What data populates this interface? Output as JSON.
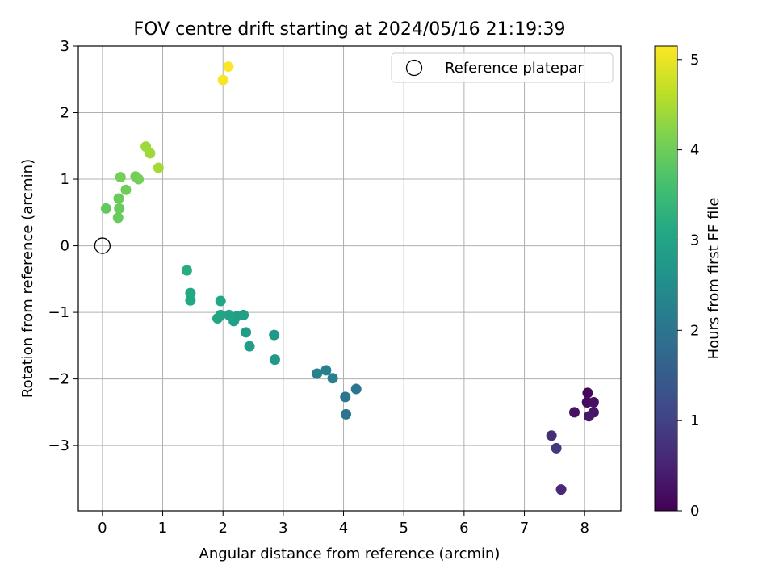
{
  "chart_data": {
    "type": "scatter",
    "title": "FOV centre drift starting at 2024/05/16 21:19:39",
    "xlabel": "Angular distance from reference (arcmin)",
    "ylabel": "Rotation from reference (arcmin)",
    "xlim": [
      -0.4,
      8.6
    ],
    "ylim": [
      -3.98,
      3.0
    ],
    "xticks": [
      0,
      1,
      2,
      3,
      4,
      5,
      6,
      7,
      8
    ],
    "yticks": [
      3,
      2,
      1,
      0,
      -1,
      -2,
      -3
    ],
    "xtick_labels": [
      "0",
      "1",
      "2",
      "3",
      "4",
      "5",
      "6",
      "7",
      "8"
    ],
    "ytick_labels": [
      "3",
      "2",
      "1",
      "0",
      "−1",
      "−2",
      "−3"
    ],
    "grid": true,
    "legend": {
      "position": "top-right",
      "entries": [
        {
          "label": "Reference platepar",
          "marker": "open-circle"
        }
      ]
    },
    "reference_point": {
      "x": 0,
      "y": 0
    },
    "colorbar": {
      "label": "Hours from first FF file",
      "colormap": "viridis",
      "range": [
        0,
        5.15
      ],
      "ticks": [
        0,
        1,
        2,
        3,
        4,
        5
      ],
      "tick_labels": [
        "0",
        "1",
        "2",
        "3",
        "4",
        "5"
      ]
    },
    "points": [
      {
        "x": 8.05,
        "y": -2.21,
        "c": 0.1
      },
      {
        "x": 8.04,
        "y": -2.35,
        "c": 0.15
      },
      {
        "x": 8.15,
        "y": -2.35,
        "c": 0.2
      },
      {
        "x": 7.83,
        "y": -2.5,
        "c": 0.25
      },
      {
        "x": 8.15,
        "y": -2.5,
        "c": 0.3
      },
      {
        "x": 8.07,
        "y": -2.56,
        "c": 0.35
      },
      {
        "x": 7.45,
        "y": -2.85,
        "c": 0.7
      },
      {
        "x": 7.53,
        "y": -3.04,
        "c": 0.8
      },
      {
        "x": 7.61,
        "y": -3.66,
        "c": 0.6
      },
      {
        "x": 4.21,
        "y": -2.15,
        "c": 2.0
      },
      {
        "x": 4.03,
        "y": -2.27,
        "c": 2.0
      },
      {
        "x": 4.04,
        "y": -2.53,
        "c": 1.95
      },
      {
        "x": 3.56,
        "y": -1.92,
        "c": 2.25
      },
      {
        "x": 3.71,
        "y": -1.87,
        "c": 2.2
      },
      {
        "x": 3.82,
        "y": -1.99,
        "c": 2.2
      },
      {
        "x": 2.85,
        "y": -1.34,
        "c": 2.75
      },
      {
        "x": 2.86,
        "y": -1.71,
        "c": 2.75
      },
      {
        "x": 2.44,
        "y": -1.51,
        "c": 2.85
      },
      {
        "x": 2.38,
        "y": -1.3,
        "c": 2.85
      },
      {
        "x": 2.34,
        "y": -1.04,
        "c": 2.9
      },
      {
        "x": 2.23,
        "y": -1.06,
        "c": 2.9
      },
      {
        "x": 2.18,
        "y": -1.13,
        "c": 2.9
      },
      {
        "x": 2.1,
        "y": -1.04,
        "c": 2.95
      },
      {
        "x": 1.96,
        "y": -1.04,
        "c": 3.0
      },
      {
        "x": 1.91,
        "y": -1.09,
        "c": 3.0
      },
      {
        "x": 1.96,
        "y": -0.83,
        "c": 3.05
      },
      {
        "x": 1.46,
        "y": -0.71,
        "c": 3.1
      },
      {
        "x": 1.46,
        "y": -0.82,
        "c": 3.1
      },
      {
        "x": 1.4,
        "y": -0.37,
        "c": 3.15
      },
      {
        "x": 0.06,
        "y": 0.56,
        "c": 3.9
      },
      {
        "x": 0.26,
        "y": 0.42,
        "c": 3.95
      },
      {
        "x": 0.28,
        "y": 0.56,
        "c": 3.95
      },
      {
        "x": 0.27,
        "y": 0.71,
        "c": 3.95
      },
      {
        "x": 0.39,
        "y": 0.84,
        "c": 4.0
      },
      {
        "x": 0.3,
        "y": 1.03,
        "c": 4.05
      },
      {
        "x": 0.55,
        "y": 1.04,
        "c": 4.05
      },
      {
        "x": 0.6,
        "y": 1.0,
        "c": 4.05
      },
      {
        "x": 0.72,
        "y": 1.49,
        "c": 4.4
      },
      {
        "x": 0.79,
        "y": 1.39,
        "c": 4.4
      },
      {
        "x": 0.93,
        "y": 1.17,
        "c": 4.45
      },
      {
        "x": 2.0,
        "y": 2.49,
        "c": 5.1
      },
      {
        "x": 2.09,
        "y": 2.69,
        "c": 5.15
      }
    ]
  }
}
